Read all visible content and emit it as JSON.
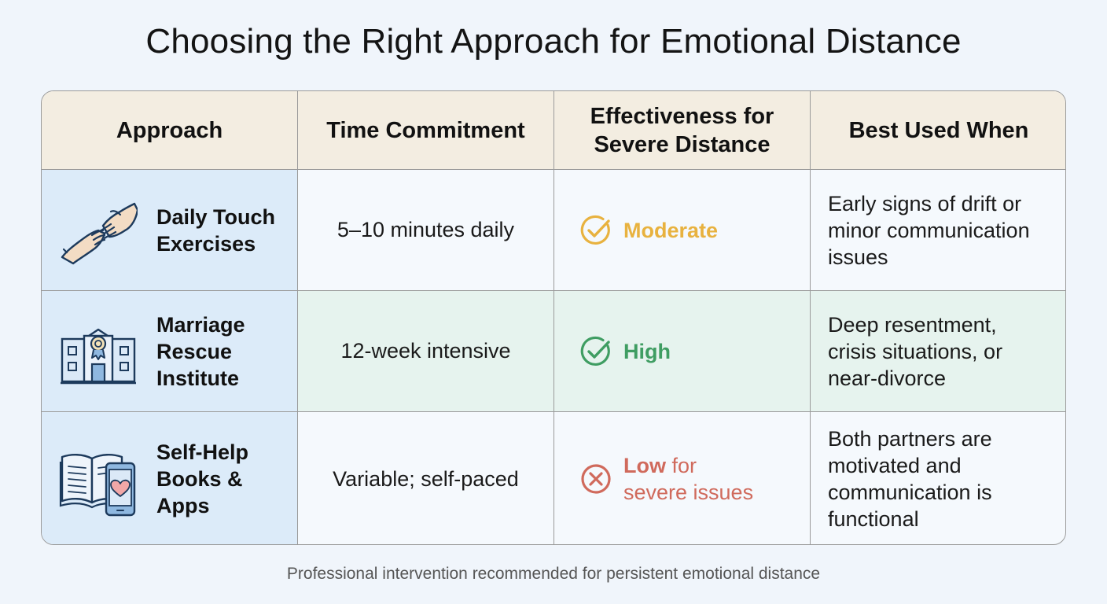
{
  "title": "Choosing the Right Approach for Emotional Distance",
  "headers": {
    "approach": "Approach",
    "time": "Time Commitment",
    "effectiveness_line1": "Effectiveness for",
    "effectiveness_line2": "Severe Distance",
    "best": "Best Used When"
  },
  "rows": [
    {
      "icon": "helping-hands-icon",
      "approach_line1": "Daily Touch",
      "approach_line2": "Exercises",
      "approach_line3": "",
      "time": "5–10 minutes daily",
      "effectiveness_strong": "Moderate",
      "effectiveness_rest_line1": "",
      "effectiveness_rest_line2": "",
      "effectiveness_status": "check",
      "effectiveness_color": "#e8b23f",
      "best_line1": "Early signs of drift or",
      "best_line2": "minor communication",
      "best_line3": "issues",
      "best_line4": ""
    },
    {
      "icon": "institute-building-icon",
      "approach_line1": "Marriage",
      "approach_line2": "Rescue",
      "approach_line3": "Institute",
      "time": "12-week intensive",
      "effectiveness_strong": "High",
      "effectiveness_rest_line1": "",
      "effectiveness_rest_line2": "",
      "effectiveness_status": "check",
      "effectiveness_color": "#3f9d62",
      "best_line1": "Deep resentment,",
      "best_line2": "crisis situations, or",
      "best_line3": "near-divorce",
      "best_line4": ""
    },
    {
      "icon": "book-and-phone-icon",
      "approach_line1": "Self-Help",
      "approach_line2": "Books &",
      "approach_line3": "Apps",
      "time": "Variable; self-paced",
      "effectiveness_strong": "Low",
      "effectiveness_rest_line1": " for",
      "effectiveness_rest_line2": "severe issues",
      "effectiveness_status": "cross",
      "effectiveness_color": "#d06a5c",
      "best_line1": "Both partners are",
      "best_line2": "motivated and",
      "best_line3": "communication is",
      "best_line4": "functional"
    }
  ],
  "footnote": "Professional intervention recommended for persistent emotional distance"
}
